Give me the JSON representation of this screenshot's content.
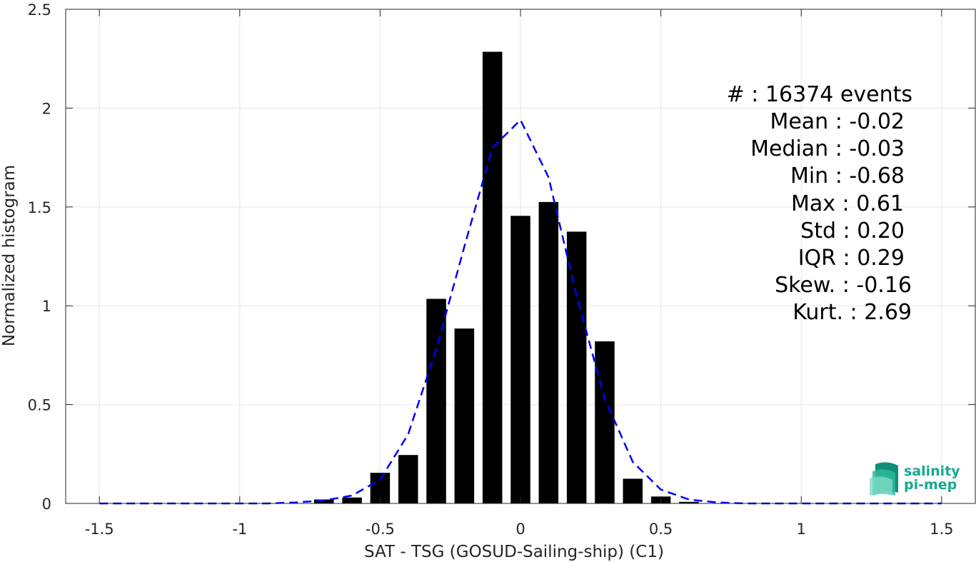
{
  "chart_data": {
    "type": "bar",
    "xlabel": "SAT - TSG (GOSUD-Sailing-ship) (C1)",
    "ylabel": "Normalized histogram",
    "xlim": [
      -1.62,
      1.62
    ],
    "ylim": [
      0,
      2.5
    ],
    "xticks": [
      -1.5,
      -1,
      -0.5,
      0,
      0.5,
      1,
      1.5
    ],
    "xtick_labels": [
      "-1.5",
      "-1",
      "-0.5",
      "0",
      "0.5",
      "1",
      "1.5"
    ],
    "yticks": [
      0,
      0.5,
      1,
      1.5,
      2,
      2.5
    ],
    "ytick_labels": [
      "0",
      "0.5",
      "1",
      "1.5",
      "2",
      "2.5"
    ],
    "grid": true,
    "bar_width": 0.07,
    "bar_color": "#000000",
    "bars": {
      "x": [
        -0.7,
        -0.6,
        -0.5,
        -0.4,
        -0.3,
        -0.2,
        -0.1,
        0.0,
        0.1,
        0.2,
        0.3,
        0.4,
        0.5,
        0.6
      ],
      "values": [
        0.02,
        0.03,
        0.155,
        0.245,
        1.035,
        0.885,
        2.285,
        1.455,
        1.525,
        1.375,
        0.82,
        0.125,
        0.035,
        0.008
      ]
    },
    "fit_curve": {
      "style": "dashed",
      "color": "#0000ff",
      "x": [
        -1.5,
        -1.4,
        -1.3,
        -1.2,
        -1.1,
        -1.0,
        -0.9,
        -0.8,
        -0.7,
        -0.6,
        -0.5,
        -0.4,
        -0.3,
        -0.2,
        -0.1,
        0.0,
        0.1,
        0.2,
        0.3,
        0.4,
        0.5,
        0.6,
        0.7,
        0.8,
        0.9,
        1.0,
        1.1,
        1.2,
        1.3,
        1.4,
        1.5
      ],
      "y": [
        0,
        0,
        0,
        0,
        0,
        0,
        0,
        0.005,
        0.015,
        0.04,
        0.12,
        0.35,
        0.78,
        1.3,
        1.8,
        1.94,
        1.65,
        1.05,
        0.53,
        0.21,
        0.07,
        0.02,
        0.005,
        0,
        0,
        0,
        0,
        0,
        0,
        0,
        0
      ]
    },
    "stats": {
      "events": "#  : 16374 events",
      "mean": "Mean : -0.02",
      "median": "Median : -0.03",
      "min": "Min : -0.68",
      "max": "Max : 0.61",
      "std": "Std : 0.20",
      "iqr": "IQR : 0.29",
      "skew": "Skew. : -0.16",
      "kurt": "Kurt. : 2.69"
    }
  },
  "logo": {
    "line1": "salinity",
    "line2": "pi-mep",
    "color": "#1aa890"
  }
}
